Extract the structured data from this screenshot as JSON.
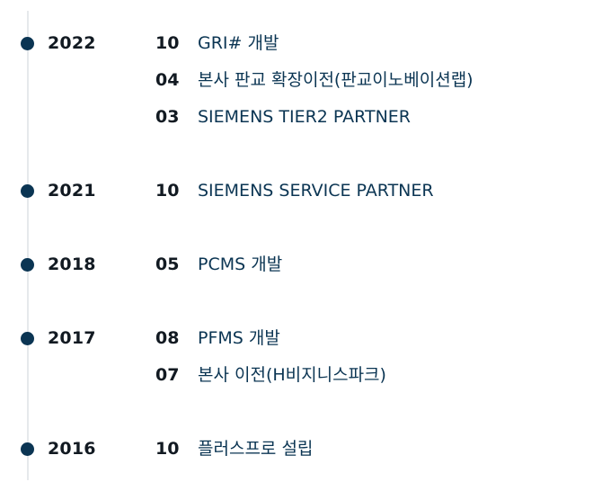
{
  "timeline": [
    {
      "year": "2022",
      "events": [
        {
          "month": "10",
          "text": "GRI# 개발"
        },
        {
          "month": "04",
          "text": "본사 판교 확장이전(판교이노베이션랩)"
        },
        {
          "month": "03",
          "text": "SIEMENS TIER2 PARTNER"
        }
      ]
    },
    {
      "year": "2021",
      "events": [
        {
          "month": "10",
          "text": "SIEMENS SERVICE PARTNER"
        }
      ]
    },
    {
      "year": "2018",
      "events": [
        {
          "month": "05",
          "text": "PCMS 개발"
        }
      ]
    },
    {
      "year": "2017",
      "events": [
        {
          "month": "08",
          "text": "PFMS 개발"
        },
        {
          "month": "07",
          "text": "본사 이전(H비지니스파크)"
        }
      ]
    },
    {
      "year": "2016",
      "events": [
        {
          "month": "10",
          "text": "플러스프로 설립"
        }
      ]
    }
  ]
}
